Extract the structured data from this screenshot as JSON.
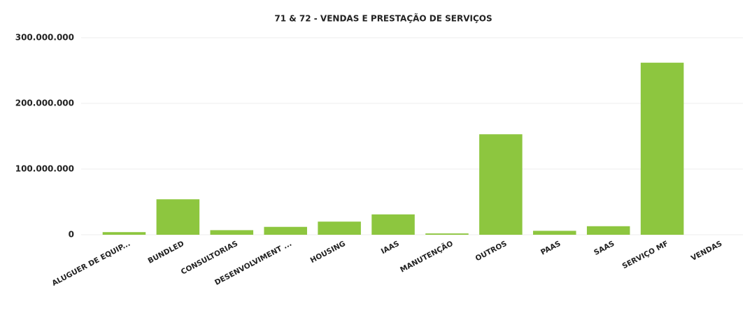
{
  "chart_data": {
    "type": "bar",
    "title": "71 & 72 - VENDAS E PRESTAÇÃO DE SERVIÇOS",
    "categories": [
      "ALUGUER DE EQUIP...",
      "BUNDLED",
      "CONSULTORIAS",
      "DESENVOLVIMENT ...",
      "HOUSING",
      "IAAS",
      "MANUTENÇÃO",
      "OUTROS",
      "PAAS",
      "SAAS",
      "SERVIÇO MF",
      "VENDAS"
    ],
    "values": [
      4000000,
      54000000,
      7000000,
      12000000,
      20000000,
      31000000,
      2000000,
      153000000,
      6000000,
      13000000,
      262000000,
      0
    ],
    "color": "#8dc63f",
    "ylim": [
      0,
      300000000
    ],
    "yticks": [
      0,
      {
        "value": 100000000,
        "label": "100.000.000"
      },
      {
        "value": 200000000,
        "label": "200.000.000"
      },
      {
        "value": 300000000,
        "label": "300.000.000"
      }
    ],
    "grid": true
  }
}
